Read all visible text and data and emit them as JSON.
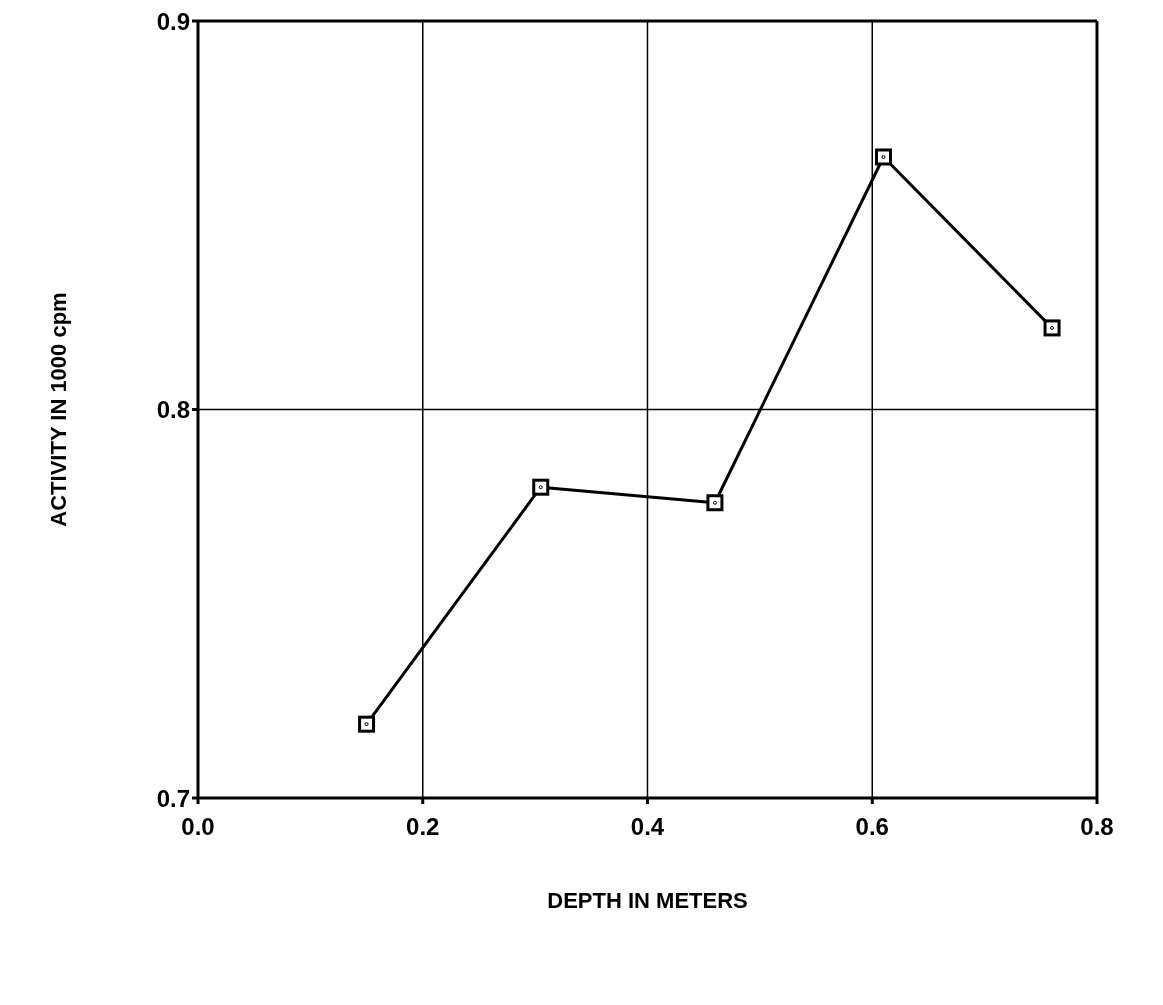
{
  "chart_data": {
    "type": "line",
    "xlabel": "DEPTH IN METERS",
    "ylabel": "ACTIVITY IN  1000  cpm",
    "x": [
      0.15,
      0.305,
      0.46,
      0.61,
      0.76
    ],
    "series": [
      {
        "color": "#000000",
        "values": [
          0.719,
          0.78,
          0.776,
          0.865,
          0.821
        ]
      }
    ],
    "xlim": [
      0,
      0.8
    ],
    "xticks": [
      {
        "value": 0,
        "label": "0.0"
      },
      0.2,
      0.4,
      0.6,
      0.8
    ],
    "ylim": [
      0.7,
      0.9
    ],
    "yticks": [
      0.7,
      0.8,
      0.9
    ],
    "grid": true,
    "marker": "square",
    "line_style": "solid",
    "legend": false
  }
}
